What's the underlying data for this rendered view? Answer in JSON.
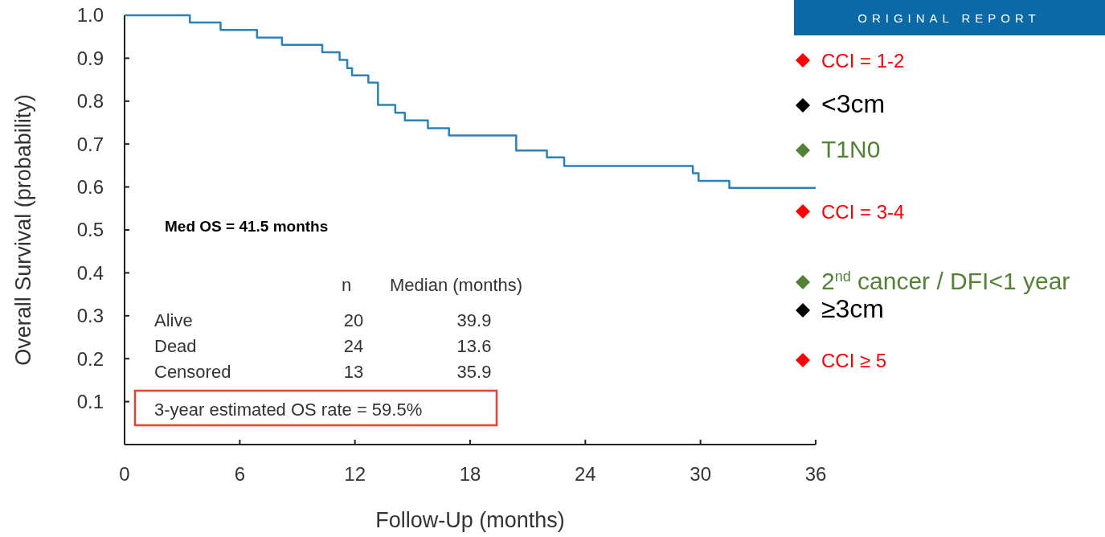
{
  "chart_data": {
    "type": "step",
    "xlabel": "Follow-Up (months)",
    "ylabel": "Overall Survival (probability)",
    "xlim": [
      0,
      36
    ],
    "xticks": [
      0,
      6,
      12,
      18,
      24,
      30,
      36
    ],
    "ylim": [
      0,
      1
    ],
    "yticks": [
      {
        "value": 0.1,
        "label": "0.1"
      },
      {
        "value": 0.2,
        "label": "0.2"
      },
      {
        "value": 0.3,
        "label": "0.3"
      },
      {
        "value": 0.4,
        "label": "0.4"
      },
      {
        "value": 0.5,
        "label": "0.5"
      },
      {
        "value": 0.6,
        "label": "0.6"
      },
      {
        "value": 0.7,
        "label": "0.7"
      },
      {
        "value": 0.8,
        "label": "0.8"
      },
      {
        "value": 0.9,
        "label": "0.9"
      },
      {
        "value": 1,
        "label": "1.0"
      }
    ],
    "grid": false,
    "marker": "none",
    "line_style": "solid",
    "series": [
      {
        "color": "#2b82b8",
        "x": [
          0,
          3.4,
          5.0,
          6.9,
          8.2,
          10.3,
          11.2,
          11.6,
          11.85,
          12.7,
          13.2,
          14.1,
          14.6,
          15.8,
          16.9,
          20.4,
          22.0,
          22.9,
          29.6,
          29.9,
          31.5,
          36
        ],
        "values": [
          1.0,
          0.983,
          0.966,
          0.948,
          0.931,
          0.914,
          0.896,
          0.877,
          0.86,
          0.843,
          0.791,
          0.773,
          0.755,
          0.737,
          0.72,
          0.685,
          0.669,
          0.649,
          0.632,
          0.614,
          0.598,
          0.598
        ]
      }
    ],
    "annotations": [
      "Med OS = 41.5 months",
      "n",
      "Median (months)",
      "Alive",
      "20",
      "39.9",
      "Dead",
      "24",
      "13.6",
      "Censored",
      "13",
      "35.9",
      "3-year estimated OS rate = 59.5%",
      "ORIGINAL REPORT",
      "CCI = 1-2",
      "<3cm",
      "T1N0",
      "CCI = 3-4",
      "2$^{nd}$ cancer / DFI<1 year",
      "≥3cm",
      "CCI ≥ 5"
    ]
  }
}
